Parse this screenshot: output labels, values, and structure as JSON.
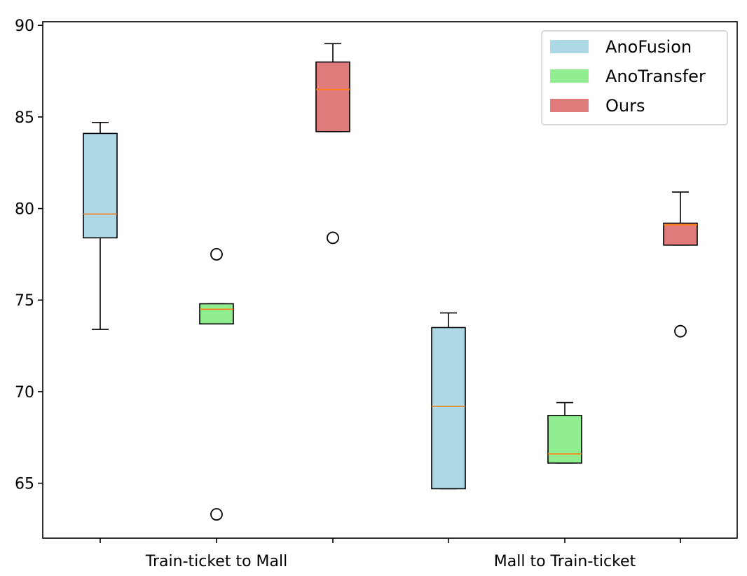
{
  "chart_data": {
    "type": "box",
    "title": "",
    "xlabel": "",
    "ylabel": "",
    "ylim": [
      62,
      90.2
    ],
    "yticks": [
      65,
      70,
      75,
      80,
      85,
      90
    ],
    "groups": [
      "Train-ticket to Mall",
      "Mall to Train-ticket"
    ],
    "series": [
      {
        "name": "AnoFusion",
        "color": "#add8e6",
        "boxes": [
          {
            "group": "Train-ticket to Mall",
            "whisker_low": 73.4,
            "q1": 78.4,
            "median": 79.7,
            "q3": 84.1,
            "whisker_high": 84.7,
            "outliers": []
          },
          {
            "group": "Mall to Train-ticket",
            "whisker_low": 64.7,
            "q1": 64.7,
            "median": 69.2,
            "q3": 73.5,
            "whisker_high": 74.3,
            "outliers": []
          }
        ]
      },
      {
        "name": "AnoTransfer",
        "color": "#90ee90",
        "boxes": [
          {
            "group": "Train-ticket to Mall",
            "whisker_low": 73.7,
            "q1": 73.7,
            "median": 74.5,
            "q3": 74.8,
            "whisker_high": 74.8,
            "outliers": [
              77.5,
              63.3
            ]
          },
          {
            "group": "Mall to Train-ticket",
            "whisker_low": 66.1,
            "q1": 66.1,
            "median": 66.6,
            "q3": 68.7,
            "whisker_high": 69.4,
            "outliers": []
          }
        ]
      },
      {
        "name": "Ours",
        "color": "#e07b7b",
        "boxes": [
          {
            "group": "Train-ticket to Mall",
            "whisker_low": 84.2,
            "q1": 84.2,
            "median": 86.5,
            "q3": 88.0,
            "whisker_high": 89.0,
            "outliers": [
              78.4
            ]
          },
          {
            "group": "Mall to Train-ticket",
            "whisker_low": 78.0,
            "q1": 78.0,
            "median": 79.1,
            "q3": 79.2,
            "whisker_high": 80.9,
            "outliers": [
              73.3
            ]
          }
        ]
      }
    ],
    "median_color": "#ff7f0e",
    "legend_position": "top-right",
    "grid": false
  }
}
